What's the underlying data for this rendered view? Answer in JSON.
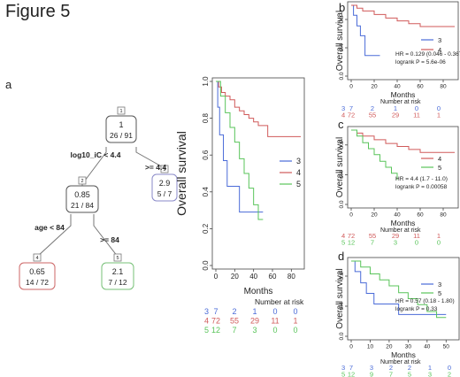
{
  "figure": {
    "title": "Figure 5",
    "panel_labels": {
      "a": "a",
      "b": "b",
      "c": "c",
      "d": "d"
    }
  },
  "colors": {
    "g3": "#4a6bd8",
    "g4": "#d05a5a",
    "g5": "#59c45a",
    "axis": "#444",
    "text": "#222"
  },
  "tree": {
    "nodes": [
      {
        "num": "1",
        "value": "1",
        "ratio": "26 / 91"
      },
      {
        "num": "2",
        "value": "0.85",
        "ratio": "21 / 84"
      },
      {
        "num": "3",
        "value": "2.9",
        "ratio": "5 / 7"
      },
      {
        "num": "4",
        "value": "0.65",
        "ratio": "14 / 72"
      },
      {
        "num": "5",
        "value": "2.1",
        "ratio": "7 / 12"
      }
    ],
    "splits": {
      "root_left": "log10_iC < 4.4",
      "root_right": ">= 4.4",
      "n2_left": "age < 84",
      "n2_right": ">= 84"
    }
  },
  "chart_data": [
    {
      "panel": "a",
      "type": "line",
      "ylabel": "Overall survival",
      "xlabel": "Months",
      "xlim": [
        0,
        90
      ],
      "ylim": [
        0,
        1
      ],
      "xticks": [
        0,
        20,
        40,
        60,
        80
      ],
      "yticks": [
        0.0,
        0.2,
        0.4,
        0.6,
        0.8,
        1.0
      ],
      "legend": [
        "3",
        "4",
        "5"
      ],
      "series": [
        {
          "name": "3",
          "color_key": "g3",
          "x": [
            0,
            2,
            4,
            8,
            12,
            14,
            25,
            50
          ],
          "y": [
            1.0,
            0.86,
            0.71,
            0.57,
            0.43,
            0.43,
            0.29,
            0.29
          ]
        },
        {
          "name": "4",
          "color_key": "g4",
          "x": [
            0,
            3,
            6,
            10,
            15,
            20,
            25,
            30,
            35,
            40,
            45,
            55,
            60,
            70,
            90
          ],
          "y": [
            1.0,
            0.97,
            0.94,
            0.92,
            0.9,
            0.86,
            0.84,
            0.82,
            0.8,
            0.78,
            0.76,
            0.7,
            0.7,
            0.7,
            0.7
          ]
        },
        {
          "name": "5",
          "color_key": "g5",
          "x": [
            0,
            5,
            10,
            15,
            20,
            25,
            30,
            35,
            40,
            45,
            50
          ],
          "y": [
            1.0,
            0.92,
            0.83,
            0.75,
            0.67,
            0.58,
            0.5,
            0.42,
            0.33,
            0.25,
            0.25
          ]
        }
      ],
      "at_risk": {
        "title": "Number at risk",
        "rows": [
          {
            "name": "3",
            "color_key": "g3",
            "values": [
              "7",
              "2",
              "1",
              "0",
              "0"
            ]
          },
          {
            "name": "4",
            "color_key": "g4",
            "values": [
              "72",
              "55",
              "29",
              "11",
              "1"
            ]
          },
          {
            "name": "5",
            "color_key": "g5",
            "values": [
              "12",
              "7",
              "3",
              "0",
              "0"
            ]
          }
        ]
      }
    },
    {
      "panel": "b",
      "type": "line",
      "ylabel": "Overall survival",
      "xlabel": "Months",
      "xlim": [
        0,
        90
      ],
      "ylim": [
        0,
        1
      ],
      "xticks": [
        0,
        20,
        40,
        60,
        80
      ],
      "yticks": [
        0.0,
        0.4,
        0.8
      ],
      "legend": [
        "3",
        "4"
      ],
      "annotation": [
        "HR = 0.129 (0.046 - 0.367)",
        "logrank P = 5.6e-06"
      ],
      "series": [
        {
          "name": "3",
          "color_key": "g3",
          "x": [
            0,
            2,
            5,
            8,
            12,
            25
          ],
          "y": [
            1.0,
            0.86,
            0.71,
            0.57,
            0.29,
            0.29
          ]
        },
        {
          "name": "4",
          "color_key": "g4",
          "x": [
            0,
            5,
            10,
            20,
            30,
            40,
            50,
            60,
            70,
            90
          ],
          "y": [
            1.0,
            0.96,
            0.92,
            0.87,
            0.82,
            0.78,
            0.74,
            0.7,
            0.7,
            0.7
          ]
        }
      ],
      "at_risk": {
        "title": "Number at risk",
        "rows": [
          {
            "name": "3",
            "color_key": "g3",
            "values": [
              "7",
              "2",
              "1",
              "0",
              "0"
            ]
          },
          {
            "name": "4",
            "color_key": "g4",
            "values": [
              "72",
              "55",
              "29",
              "11",
              "1"
            ]
          }
        ]
      }
    },
    {
      "panel": "c",
      "type": "line",
      "ylabel": "Overall survival",
      "xlabel": "Months",
      "xlim": [
        0,
        90
      ],
      "ylim": [
        0,
        1
      ],
      "xticks": [
        0,
        20,
        40,
        60,
        80
      ],
      "yticks": [
        0.0,
        0.4,
        0.8
      ],
      "legend": [
        "4",
        "5"
      ],
      "annotation": [
        "HR = 4.4 (1.7 - 11.0)",
        "logrank P = 0.00058"
      ],
      "series": [
        {
          "name": "4",
          "color_key": "g4",
          "x": [
            0,
            5,
            10,
            20,
            30,
            40,
            50,
            60,
            70,
            90
          ],
          "y": [
            1.0,
            0.96,
            0.92,
            0.87,
            0.82,
            0.78,
            0.74,
            0.7,
            0.7,
            0.7
          ]
        },
        {
          "name": "5",
          "color_key": "g5",
          "x": [
            0,
            5,
            10,
            15,
            20,
            25,
            30,
            35,
            40
          ],
          "y": [
            1.0,
            0.92,
            0.83,
            0.75,
            0.67,
            0.58,
            0.5,
            0.42,
            0.33
          ]
        }
      ],
      "at_risk": {
        "title": "Number at risk",
        "rows": [
          {
            "name": "4",
            "color_key": "g4",
            "values": [
              "72",
              "55",
              "29",
              "11",
              "1"
            ]
          },
          {
            "name": "5",
            "color_key": "g5",
            "values": [
              "12",
              "7",
              "3",
              "0",
              "0"
            ]
          }
        ]
      }
    },
    {
      "panel": "d",
      "type": "line",
      "ylabel": "Overall survival",
      "xlabel": "Months",
      "xlim": [
        0,
        55
      ],
      "ylim": [
        0,
        1
      ],
      "xticks": [
        0,
        10,
        20,
        30,
        40,
        50
      ],
      "yticks": [
        0.0,
        0.4,
        0.8
      ],
      "legend": [
        "3",
        "5"
      ],
      "annotation": [
        "HR = 0.57 (0.18 - 1.80)",
        "logrank P = 0.33"
      ],
      "series": [
        {
          "name": "3",
          "color_key": "g3",
          "x": [
            0,
            2,
            5,
            8,
            12,
            25,
            50
          ],
          "y": [
            1.0,
            0.86,
            0.71,
            0.57,
            0.43,
            0.29,
            0.29
          ]
        },
        {
          "name": "5",
          "color_key": "g5",
          "x": [
            0,
            5,
            10,
            15,
            20,
            25,
            30,
            35,
            40,
            45,
            50
          ],
          "y": [
            1.0,
            0.92,
            0.83,
            0.75,
            0.67,
            0.58,
            0.5,
            0.42,
            0.33,
            0.25,
            0.25
          ]
        }
      ],
      "at_risk": {
        "title": "Number at risk",
        "rows": [
          {
            "name": "3",
            "color_key": "g3",
            "values": [
              "7",
              "3",
              "2",
              "2",
              "1",
              "0"
            ]
          },
          {
            "name": "5",
            "color_key": "g5",
            "values": [
              "12",
              "9",
              "7",
              "5",
              "3",
              "2"
            ]
          }
        ]
      }
    }
  ]
}
